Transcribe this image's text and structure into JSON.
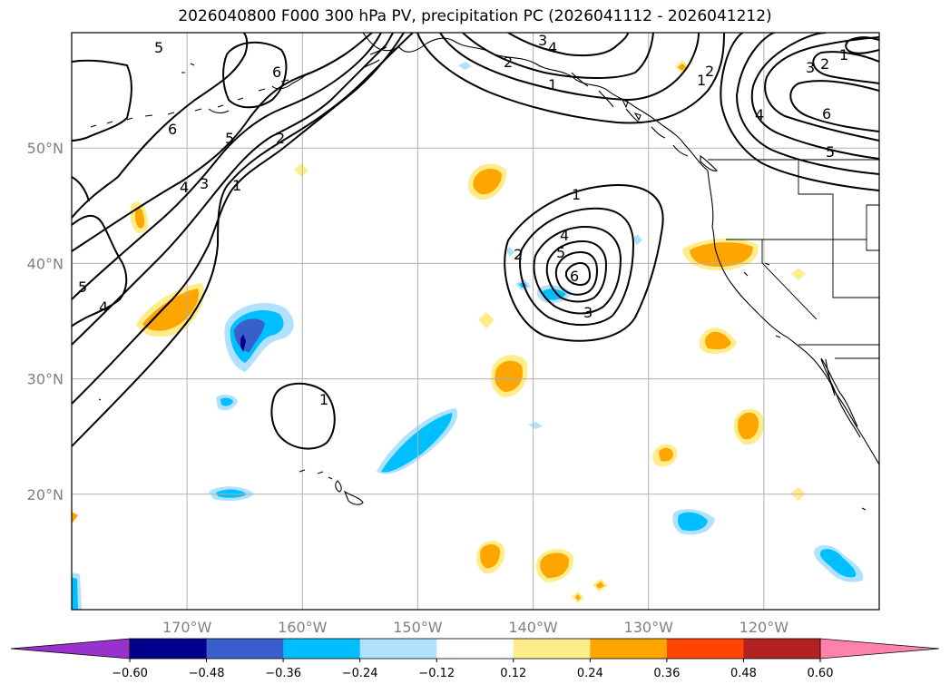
{
  "title": "2026040800 F000 300 hPa PV, precipitation PC (2026041112 - 2026041212)",
  "map": {
    "lon_ticks": [
      {
        "lon": -170,
        "label": "170°W"
      },
      {
        "lon": -160,
        "label": "160°W"
      },
      {
        "lon": -150,
        "label": "150°W"
      },
      {
        "lon": -140,
        "label": "140°W"
      },
      {
        "lon": -130,
        "label": "130°W"
      },
      {
        "lon": -120,
        "label": "120°W"
      }
    ],
    "lat_ticks": [
      {
        "lat": 20,
        "label": "20°N"
      },
      {
        "lat": 30,
        "label": "30°N"
      },
      {
        "lat": 40,
        "label": "40°N"
      },
      {
        "lat": 50,
        "label": "50°N"
      }
    ],
    "lon_range": [
      -180,
      -110
    ],
    "lat_range": [
      10,
      60
    ],
    "grid": true,
    "pv_contour_labels": [
      "1",
      "2",
      "3",
      "4",
      "5",
      "6"
    ]
  },
  "colorbar": {
    "ticks": [
      "−0.60",
      "−0.48",
      "−0.36",
      "−0.24",
      "−0.12",
      "0.12",
      "0.24",
      "0.36",
      "0.48",
      "0.60"
    ],
    "colors": [
      "#9932cc",
      "#00008b",
      "#3a5fcd",
      "#00bfff",
      "#b0e2ff",
      "#ffffff",
      "#ffec8b",
      "#ffa500",
      "#ff4500",
      "#b22222",
      "#ff82ab"
    ],
    "extend": "both"
  }
}
